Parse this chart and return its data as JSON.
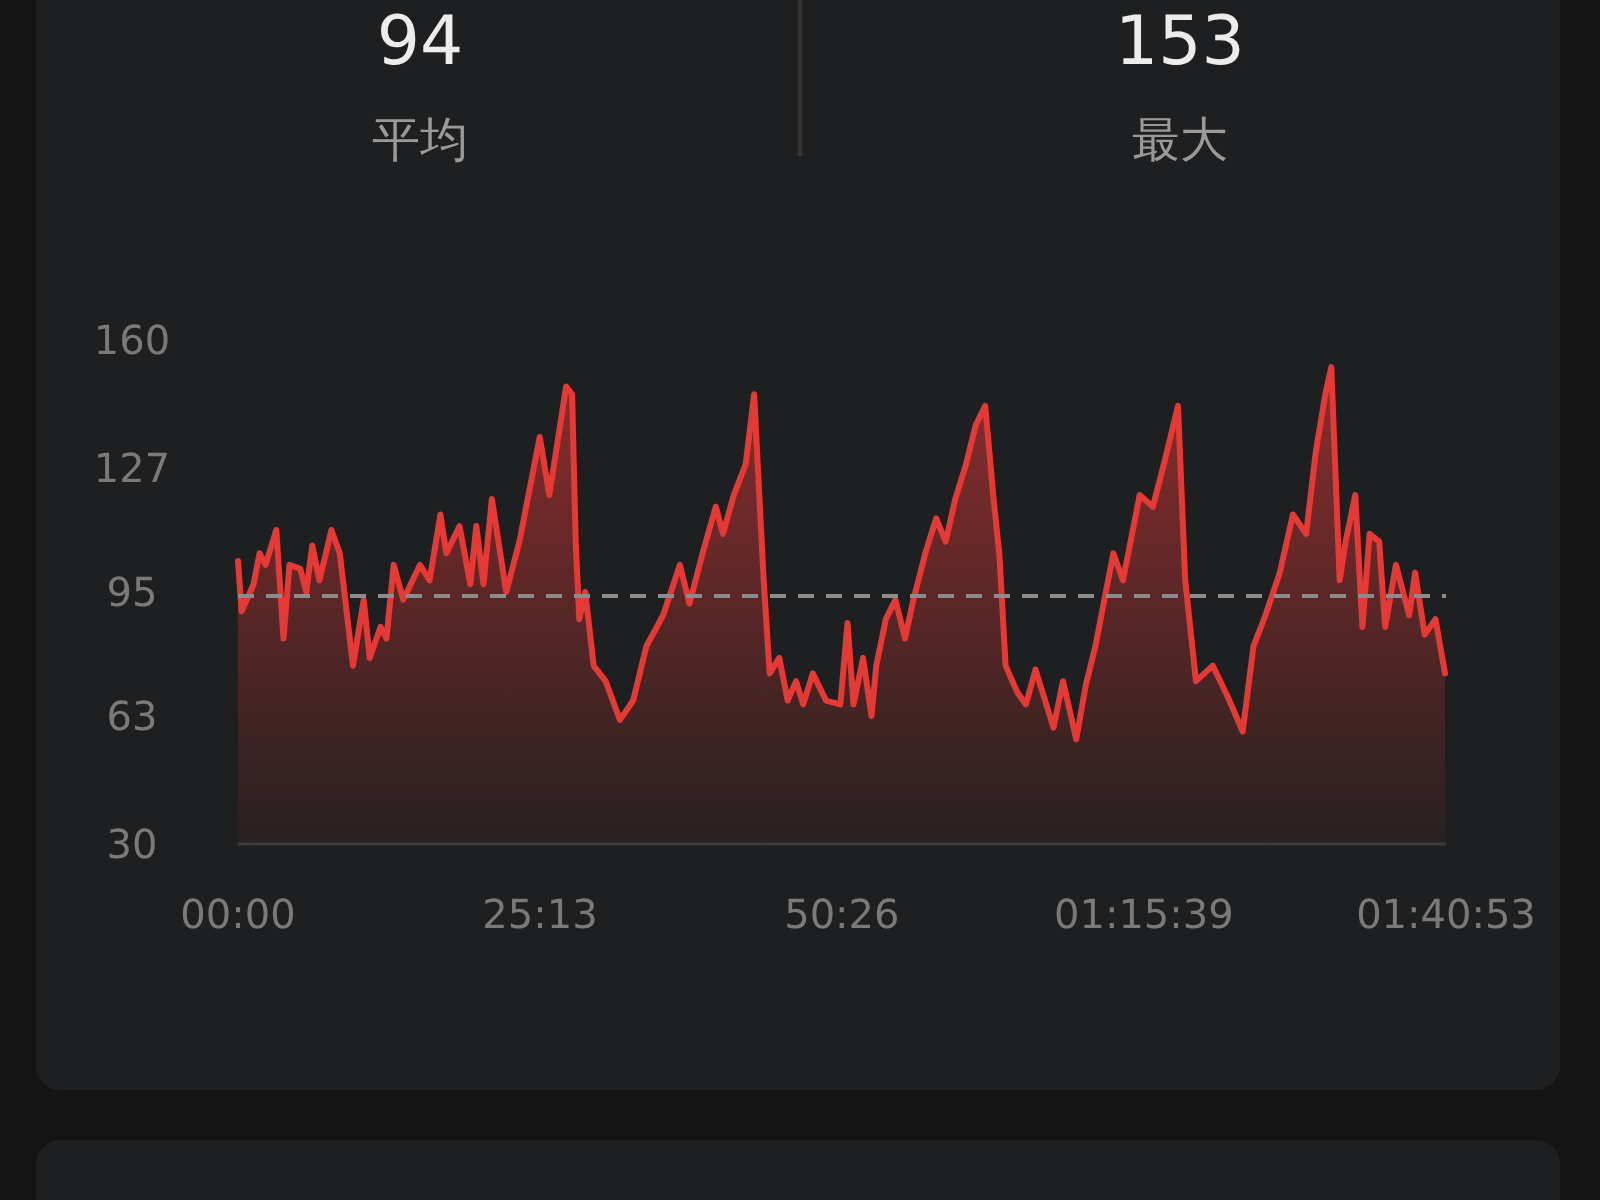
{
  "chart_data": {
    "type": "area",
    "annotations": [
      "94",
      "平均",
      "153",
      "最大"
    ],
    "xlim": [
      0,
      100.88
    ],
    "xticks": [
      {
        "value": 0,
        "label": "00:00"
      },
      {
        "value": 25.22,
        "label": "25:13"
      },
      {
        "value": 50.43,
        "label": "50:26"
      },
      {
        "value": 75.65,
        "label": "01:15:39"
      },
      {
        "value": 100.88,
        "label": "01:40:53"
      }
    ],
    "ylim": [
      30,
      160
    ],
    "yticks": [
      30,
      63,
      95,
      127,
      160
    ],
    "grid": false,
    "marker": "none",
    "line_style": "solid",
    "ref_lines": [
      {
        "axis": "y",
        "value": 94,
        "color": "#8c8c8c",
        "line_style": "dashed"
      }
    ],
    "series": [
      {
        "color": "#e53935",
        "x": [
          0,
          0.3,
          1.3,
          1.8,
          2.3,
          3.2,
          3.8,
          4.3,
          5.2,
          5.7,
          6.2,
          6.8,
          7.8,
          8.5,
          9.6,
          10.5,
          11.0,
          11.9,
          12.4,
          13.0,
          13.8,
          15.2,
          16.0,
          16.9,
          17.4,
          18.5,
          19.4,
          19.9,
          20.5,
          21.2,
          22.4,
          23.5,
          25.2,
          26.0,
          27.4,
          27.9,
          28.2,
          28.5,
          29.0,
          29.7,
          30.7,
          31.9,
          33.0,
          34.1,
          35.5,
          36.9,
          37.7,
          38.8,
          39.9,
          40.5,
          41.4,
          42.4,
          43.1,
          43.9,
          44.4,
          45.2,
          45.9,
          46.6,
          47.2,
          48.0,
          49.1,
          50.3,
          50.9,
          51.4,
          52.2,
          52.9,
          53.3,
          54.1,
          54.9,
          55.7,
          56.4,
          57.4,
          58.3,
          59.1,
          59.9,
          60.8,
          61.6,
          62.4,
          63.1,
          63.6,
          64.1,
          65.1,
          65.8,
          66.6,
          68.1,
          68.9,
          70.0,
          70.8,
          71.6,
          73.1,
          73.9,
          75.3,
          76.4,
          77.4,
          78.5,
          79.1,
          80.0,
          81.4,
          82.8,
          83.9,
          84.8,
          85.8,
          87.0,
          88.1,
          89.2,
          90.0,
          90.8,
          91.3,
          92.0,
          92.5,
          93.3,
          93.9,
          94.5,
          95.3,
          95.8,
          96.7,
          97.8,
          98.3,
          99.1,
          100.0,
          100.8
        ],
        "values": [
          103,
          90,
          97,
          105,
          102,
          111,
          83,
          102,
          101,
          95,
          107,
          98,
          111,
          105,
          76,
          93,
          78,
          86,
          83,
          102,
          93,
          102,
          98,
          115,
          105,
          112,
          97,
          112,
          97,
          119,
          95,
          108,
          135,
          120,
          148,
          146,
          108,
          88,
          95,
          76,
          72,
          62,
          67,
          81,
          89,
          102,
          92,
          105,
          117,
          110,
          120,
          128,
          146,
          98,
          74,
          78,
          67,
          72,
          66,
          74,
          67,
          66,
          87,
          66,
          78,
          63,
          76,
          88,
          93,
          83,
          93,
          105,
          114,
          108,
          119,
          128,
          138,
          143,
          119,
          104,
          76,
          69,
          66,
          75,
          60,
          72,
          57,
          71,
          81,
          105,
          98,
          120,
          117,
          129,
          143,
          98,
          72,
          76,
          67,
          59,
          81,
          89,
          100,
          115,
          110,
          131,
          146,
          153,
          98,
          108,
          120,
          86,
          110,
          108,
          86,
          102,
          89,
          100,
          84,
          88,
          74
        ]
      }
    ]
  }
}
